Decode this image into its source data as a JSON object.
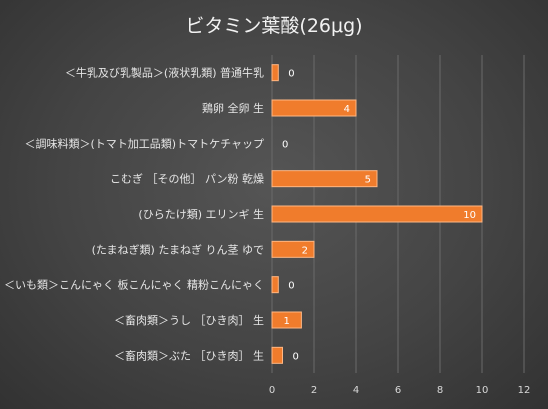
{
  "chart_data": {
    "type": "bar",
    "orientation": "horizontal",
    "title": "ビタミン葉酸(26μg)",
    "xlabel": "",
    "ylabel": "",
    "categories": [
      "＜牛乳及び乳製品＞(液状乳類) 普通牛乳",
      "鶏卵 全卵 生",
      "＜調味料類＞(トマト加工品類)トマトケチャップ",
      "こむぎ ［その他］ パン粉 乾燥",
      "(ひらたけ類) エリンギ 生",
      "(たまねぎ類) たまねぎ りん茎 ゆで",
      "＜いも類＞こんにゃく 板こんにゃく 精粉こんにゃく",
      "＜畜肉類＞うし ［ひき肉］ 生",
      "＜畜肉類＞ぶた ［ひき肉］ 生"
    ],
    "values": [
      0.3,
      4,
      0,
      5,
      10,
      2,
      0.3,
      1.4,
      0.5
    ],
    "data_labels": [
      "0",
      "4",
      "0",
      "5",
      "10",
      "2",
      "0",
      "1",
      "0"
    ],
    "xlim": [
      0,
      12
    ],
    "xticks": [
      "0",
      "2",
      "4",
      "6",
      "8",
      "10",
      "12"
    ],
    "grid": true,
    "legend": "none",
    "colors": {
      "bar": "#f07c2c",
      "bar_edge": "#ffb784",
      "background": "#454545",
      "text": "#e6e6e6"
    }
  }
}
